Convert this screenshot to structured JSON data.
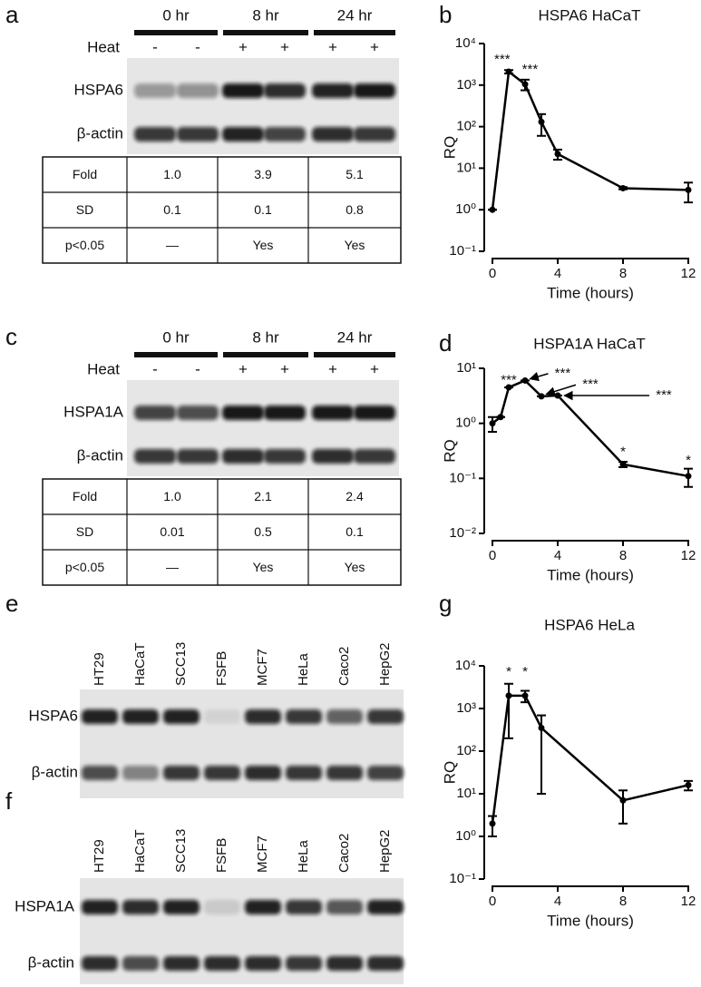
{
  "panel_labels": [
    "a",
    "b",
    "c",
    "d",
    "e",
    "f",
    "g"
  ],
  "blots": [
    {
      "times": [
        "0 hr",
        "8 hr",
        "24 hr"
      ],
      "heat_label": "Heat",
      "heat": [
        "-",
        "-",
        "+",
        "+",
        "+",
        "+"
      ],
      "rows": [
        "HSPA6",
        "β-actin"
      ],
      "table": [
        [
          "Fold",
          "1.0",
          "3.9",
          "5.1"
        ],
        [
          "SD",
          "0.1",
          "0.1",
          "0.8"
        ],
        [
          "p<0.05",
          "—",
          "Yes",
          "Yes"
        ]
      ]
    },
    {
      "times": [
        "0 hr",
        "8 hr",
        "24 hr"
      ],
      "heat_label": "Heat",
      "heat": [
        "-",
        "-",
        "+",
        "+",
        "+",
        "+"
      ],
      "rows": [
        "HSPA1A",
        "β-actin"
      ],
      "table": [
        [
          "Fold",
          "1.0",
          "2.1",
          "2.4"
        ],
        [
          "SD",
          "0.01",
          "0.5",
          "0.1"
        ],
        [
          "p<0.05",
          "—",
          "Yes",
          "Yes"
        ]
      ]
    }
  ],
  "lane_blots": [
    {
      "lanes": [
        "HT29",
        "HaCaT",
        "SCC13",
        "FSFB",
        "MCF7",
        "HeLa",
        "Caco2",
        "HepG2"
      ],
      "rows": [
        "HSPA6",
        "β-actin"
      ]
    },
    {
      "lanes": [
        "HT29",
        "HaCaT",
        "SCC13",
        "FSFB",
        "MCF7",
        "HeLa",
        "Caco2",
        "HepG2"
      ],
      "rows": [
        "HSPA1A",
        "β-actin"
      ]
    }
  ],
  "chart_data": [
    {
      "type": "line",
      "title": "HSPA6 HaCaT",
      "xlabel": "Time (hours)",
      "ylabel": "RQ",
      "yscale": "log",
      "x": [
        0,
        1,
        2,
        3,
        4,
        8,
        12
      ],
      "series": [
        {
          "color": "#000000",
          "values": [
            1,
            2100,
            1050,
            130,
            22,
            3.3,
            3
          ],
          "errors": [
            0,
            200,
            300,
            70,
            6,
            0.2,
            1.5
          ]
        }
      ],
      "xlim": [
        -0.5,
        12.5
      ],
      "xticks": [
        0,
        4,
        8,
        12
      ],
      "ylim": [
        0.1,
        10000
      ],
      "yticks": [
        {
          "value": 0.1,
          "label": "10⁻¹"
        },
        {
          "value": 1,
          "label": "10⁰"
        },
        {
          "value": 10,
          "label": "10¹"
        },
        {
          "value": 100,
          "label": "10²"
        },
        {
          "value": 1000,
          "label": "10³"
        },
        {
          "value": 10000,
          "label": "10⁴"
        }
      ],
      "annotations": [
        {
          "text": "***",
          "x": 0.6,
          "y": 4000
        },
        {
          "text": "***",
          "x": 2.3,
          "y": 2300
        }
      ]
    },
    {
      "type": "line",
      "title": "HSPA1A HaCaT",
      "xlabel": "Time (hours)",
      "ylabel": "RQ",
      "yscale": "log",
      "x": [
        0,
        0.5,
        1,
        2,
        3,
        4,
        8,
        12
      ],
      "series": [
        {
          "color": "#000000",
          "values": [
            1,
            1.3,
            4.5,
            6,
            3.1,
            3.2,
            0.18,
            0.11
          ],
          "errors": [
            0.3,
            0,
            0,
            0,
            0,
            0,
            0.02,
            0.04
          ]
        }
      ],
      "xlim": [
        -0.5,
        12.5
      ],
      "xticks": [
        0,
        4,
        8,
        12
      ],
      "ylim": [
        0.01,
        10
      ],
      "yticks": [
        {
          "value": 0.01,
          "label": "10⁻²"
        },
        {
          "value": 0.1,
          "label": "10⁻¹"
        },
        {
          "value": 1,
          "label": "10⁰"
        },
        {
          "value": 10,
          "label": "10¹"
        }
      ],
      "annotations": [
        {
          "text": "***",
          "x": 1,
          "y": 6
        },
        {
          "text": "***",
          "x": 4.3,
          "y": 8,
          "arrow_to": [
            2.3,
            6.4
          ]
        },
        {
          "text": "***",
          "x": 6,
          "y": 5,
          "arrow_to": [
            3.3,
            3.4
          ]
        },
        {
          "text": "***",
          "x": 10.5,
          "y": 3.2,
          "arrow_to": [
            4.4,
            3.2
          ]
        },
        {
          "text": "*",
          "x": 8,
          "y": 0.3
        },
        {
          "text": "*",
          "x": 12,
          "y": 0.21
        }
      ]
    },
    {
      "type": "line",
      "title": "HSPA6 HeLa",
      "xlabel": "Time (hours)",
      "ylabel": "RQ",
      "yscale": "log",
      "x": [
        0,
        1,
        2,
        3,
        8,
        12
      ],
      "series": [
        {
          "color": "#000000",
          "values": [
            2,
            2000,
            2000,
            350,
            7,
            16
          ],
          "errors": [
            1,
            1800,
            600,
            340,
            5,
            4
          ]
        }
      ],
      "xlim": [
        -0.5,
        12.5
      ],
      "xticks": [
        0,
        4,
        8,
        12
      ],
      "ylim": [
        0.1,
        10000
      ],
      "yticks": [
        {
          "value": 0.1,
          "label": "10⁻¹"
        },
        {
          "value": 1,
          "label": "10⁰"
        },
        {
          "value": 10,
          "label": "10¹"
        },
        {
          "value": 100,
          "label": "10²"
        },
        {
          "value": 1000,
          "label": "10³"
        },
        {
          "value": 10000,
          "label": "10⁴"
        }
      ],
      "annotations": [
        {
          "text": "*",
          "x": 1,
          "y": 7000
        },
        {
          "text": "*",
          "x": 2,
          "y": 7000
        }
      ]
    }
  ]
}
